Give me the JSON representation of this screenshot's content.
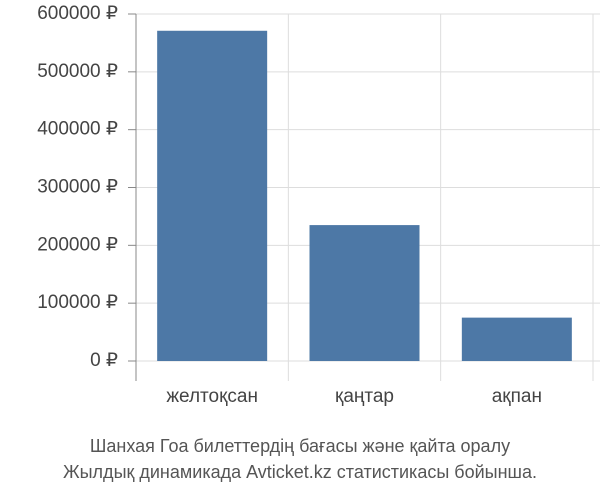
{
  "chart_data": {
    "type": "bar",
    "title": "Шанхая Гоа билеттердің бағасы және қайта оралу",
    "subtitle": "Жылдық динамикада Avticket.kz статистикасы бойынша.",
    "categories": [
      "желтоқсан",
      "қаңтар",
      "ақпан"
    ],
    "values": [
      571000,
      235000,
      75000
    ],
    "color": "#4d78a6",
    "ylim": [
      0,
      600000
    ],
    "yticks": [
      {
        "value": 0,
        "label": "0 ₽"
      },
      {
        "value": 100000,
        "label": "100000 ₽"
      },
      {
        "value": 200000,
        "label": "200000 ₽"
      },
      {
        "value": 300000,
        "label": "300000 ₽"
      },
      {
        "value": 400000,
        "label": "400000 ₽"
      },
      {
        "value": 500000,
        "label": "500000 ₽"
      },
      {
        "value": 600000,
        "label": "600000 ₽"
      }
    ],
    "grid": true
  }
}
